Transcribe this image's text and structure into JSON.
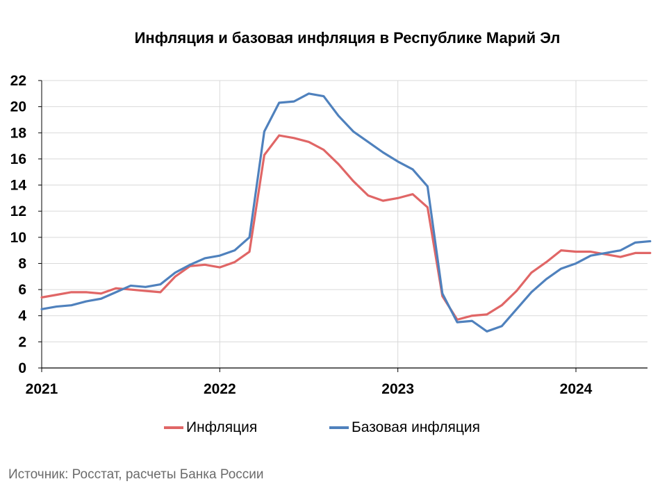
{
  "source_note": "Источник: Росстат, расчеты Банка России",
  "colors": {
    "inflation": "#e06666",
    "core_inflation": "#4f81bd",
    "grid": "#d9d9d9",
    "axis": "#000000"
  },
  "chart_data": {
    "type": "line",
    "title": "Инфляция и базовая инфляция в Республике Марий Эл",
    "xlabel": "",
    "ylabel": "",
    "ylim": [
      0,
      22
    ],
    "y_ticks": [
      "0",
      "2",
      "4",
      "6",
      "8",
      "10",
      "12",
      "14",
      "16",
      "18",
      "20",
      "22"
    ],
    "x_ticks": [
      "2021",
      "2022",
      "2023",
      "2024"
    ],
    "x_start": "2021-01",
    "grid": "vertical and horizontal",
    "legend_position": "bottom",
    "series": [
      {
        "name": "Инфляция",
        "values": [
          5.4,
          5.6,
          5.8,
          5.8,
          5.7,
          6.1,
          6.0,
          5.9,
          5.8,
          7.0,
          7.8,
          7.9,
          7.7,
          8.1,
          8.9,
          16.3,
          17.8,
          17.6,
          17.3,
          16.7,
          15.6,
          14.3,
          13.2,
          12.8,
          13.0,
          13.3,
          12.3,
          5.5,
          3.7,
          4.0,
          4.1,
          4.8,
          5.9,
          7.3,
          8.1,
          9.0,
          8.9,
          8.9,
          8.7,
          8.5,
          8.8,
          8.8
        ]
      },
      {
        "name": "Базовая инфляция",
        "values": [
          4.5,
          4.7,
          4.8,
          5.1,
          5.3,
          5.8,
          6.3,
          6.2,
          6.4,
          7.3,
          7.9,
          8.4,
          8.6,
          9.0,
          10.0,
          18.1,
          20.3,
          20.4,
          21.0,
          20.8,
          19.3,
          18.1,
          17.3,
          16.5,
          15.8,
          15.2,
          13.9,
          5.7,
          3.5,
          3.6,
          2.8,
          3.2,
          4.5,
          5.8,
          6.8,
          7.6,
          8.0,
          8.6,
          8.8,
          9.0,
          9.6,
          9.7
        ]
      }
    ]
  }
}
